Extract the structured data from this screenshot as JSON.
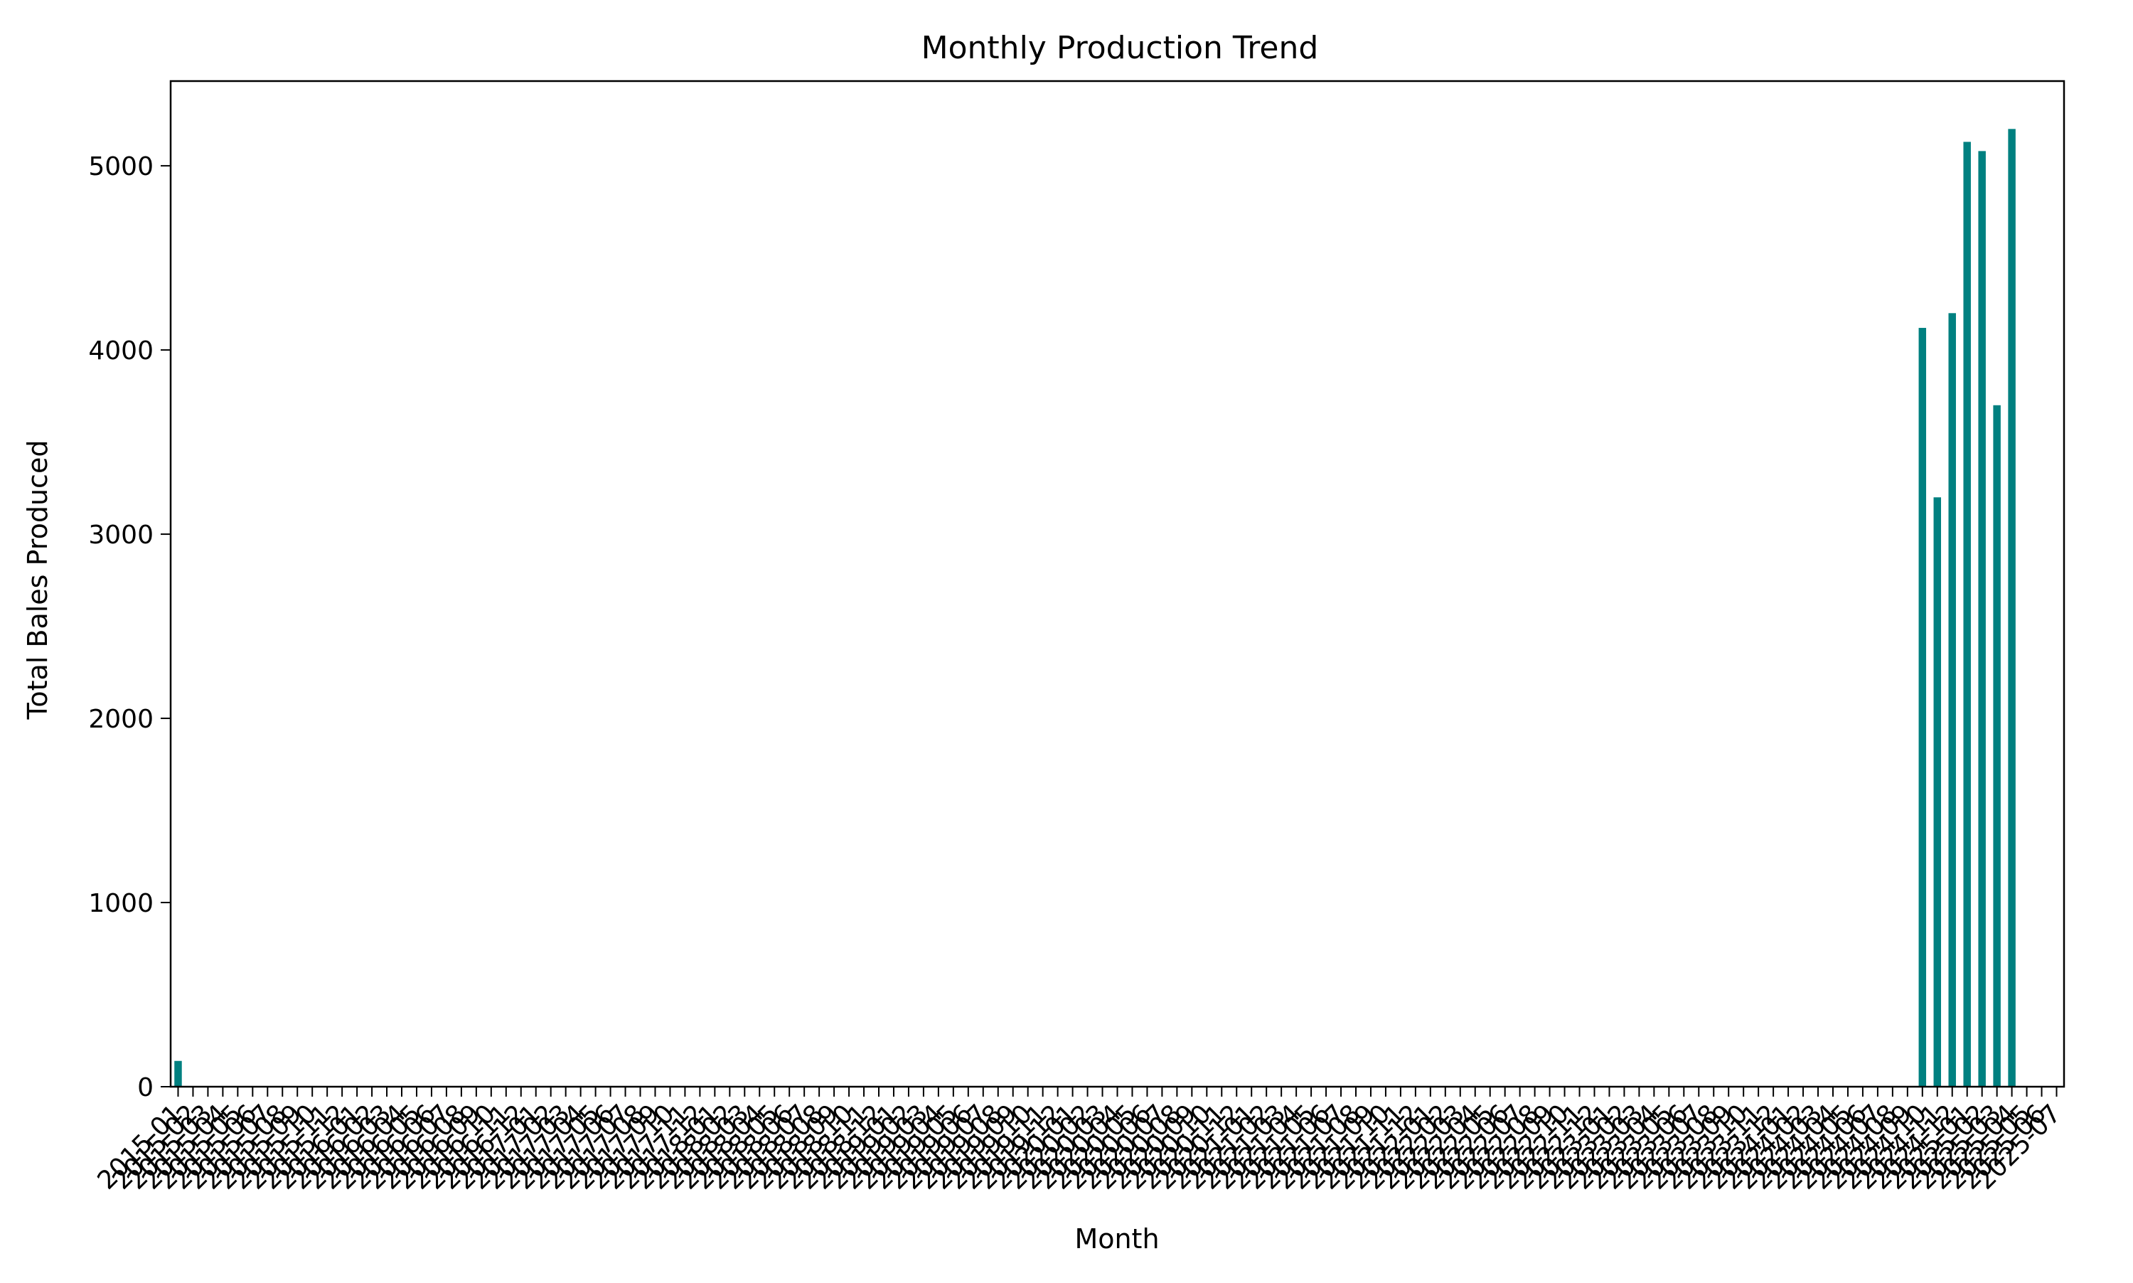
{
  "chart_data": {
    "type": "bar",
    "title": "Monthly Production Trend",
    "xlabel": "Month",
    "ylabel": "Total Bales Produced",
    "ylim": [
      0,
      5460
    ],
    "yticks": [
      0,
      1000,
      2000,
      3000,
      4000,
      5000
    ],
    "grid": false,
    "legend": "none",
    "bar_color": "#008080",
    "start_month": "2015-01",
    "end_month": "2025-07",
    "category_count": 127,
    "nonzero_values": [
      {
        "category": "2015-01",
        "value": 140
      },
      {
        "category": "2024-10",
        "value": 4120
      },
      {
        "category": "2024-11",
        "value": 3200
      },
      {
        "category": "2024-12",
        "value": 4200
      },
      {
        "category": "2025-01",
        "value": 5130
      },
      {
        "category": "2025-02",
        "value": 5080
      },
      {
        "category": "2025-03",
        "value": 3700
      },
      {
        "category": "2025-04",
        "value": 5200
      }
    ],
    "default_value": 0
  }
}
